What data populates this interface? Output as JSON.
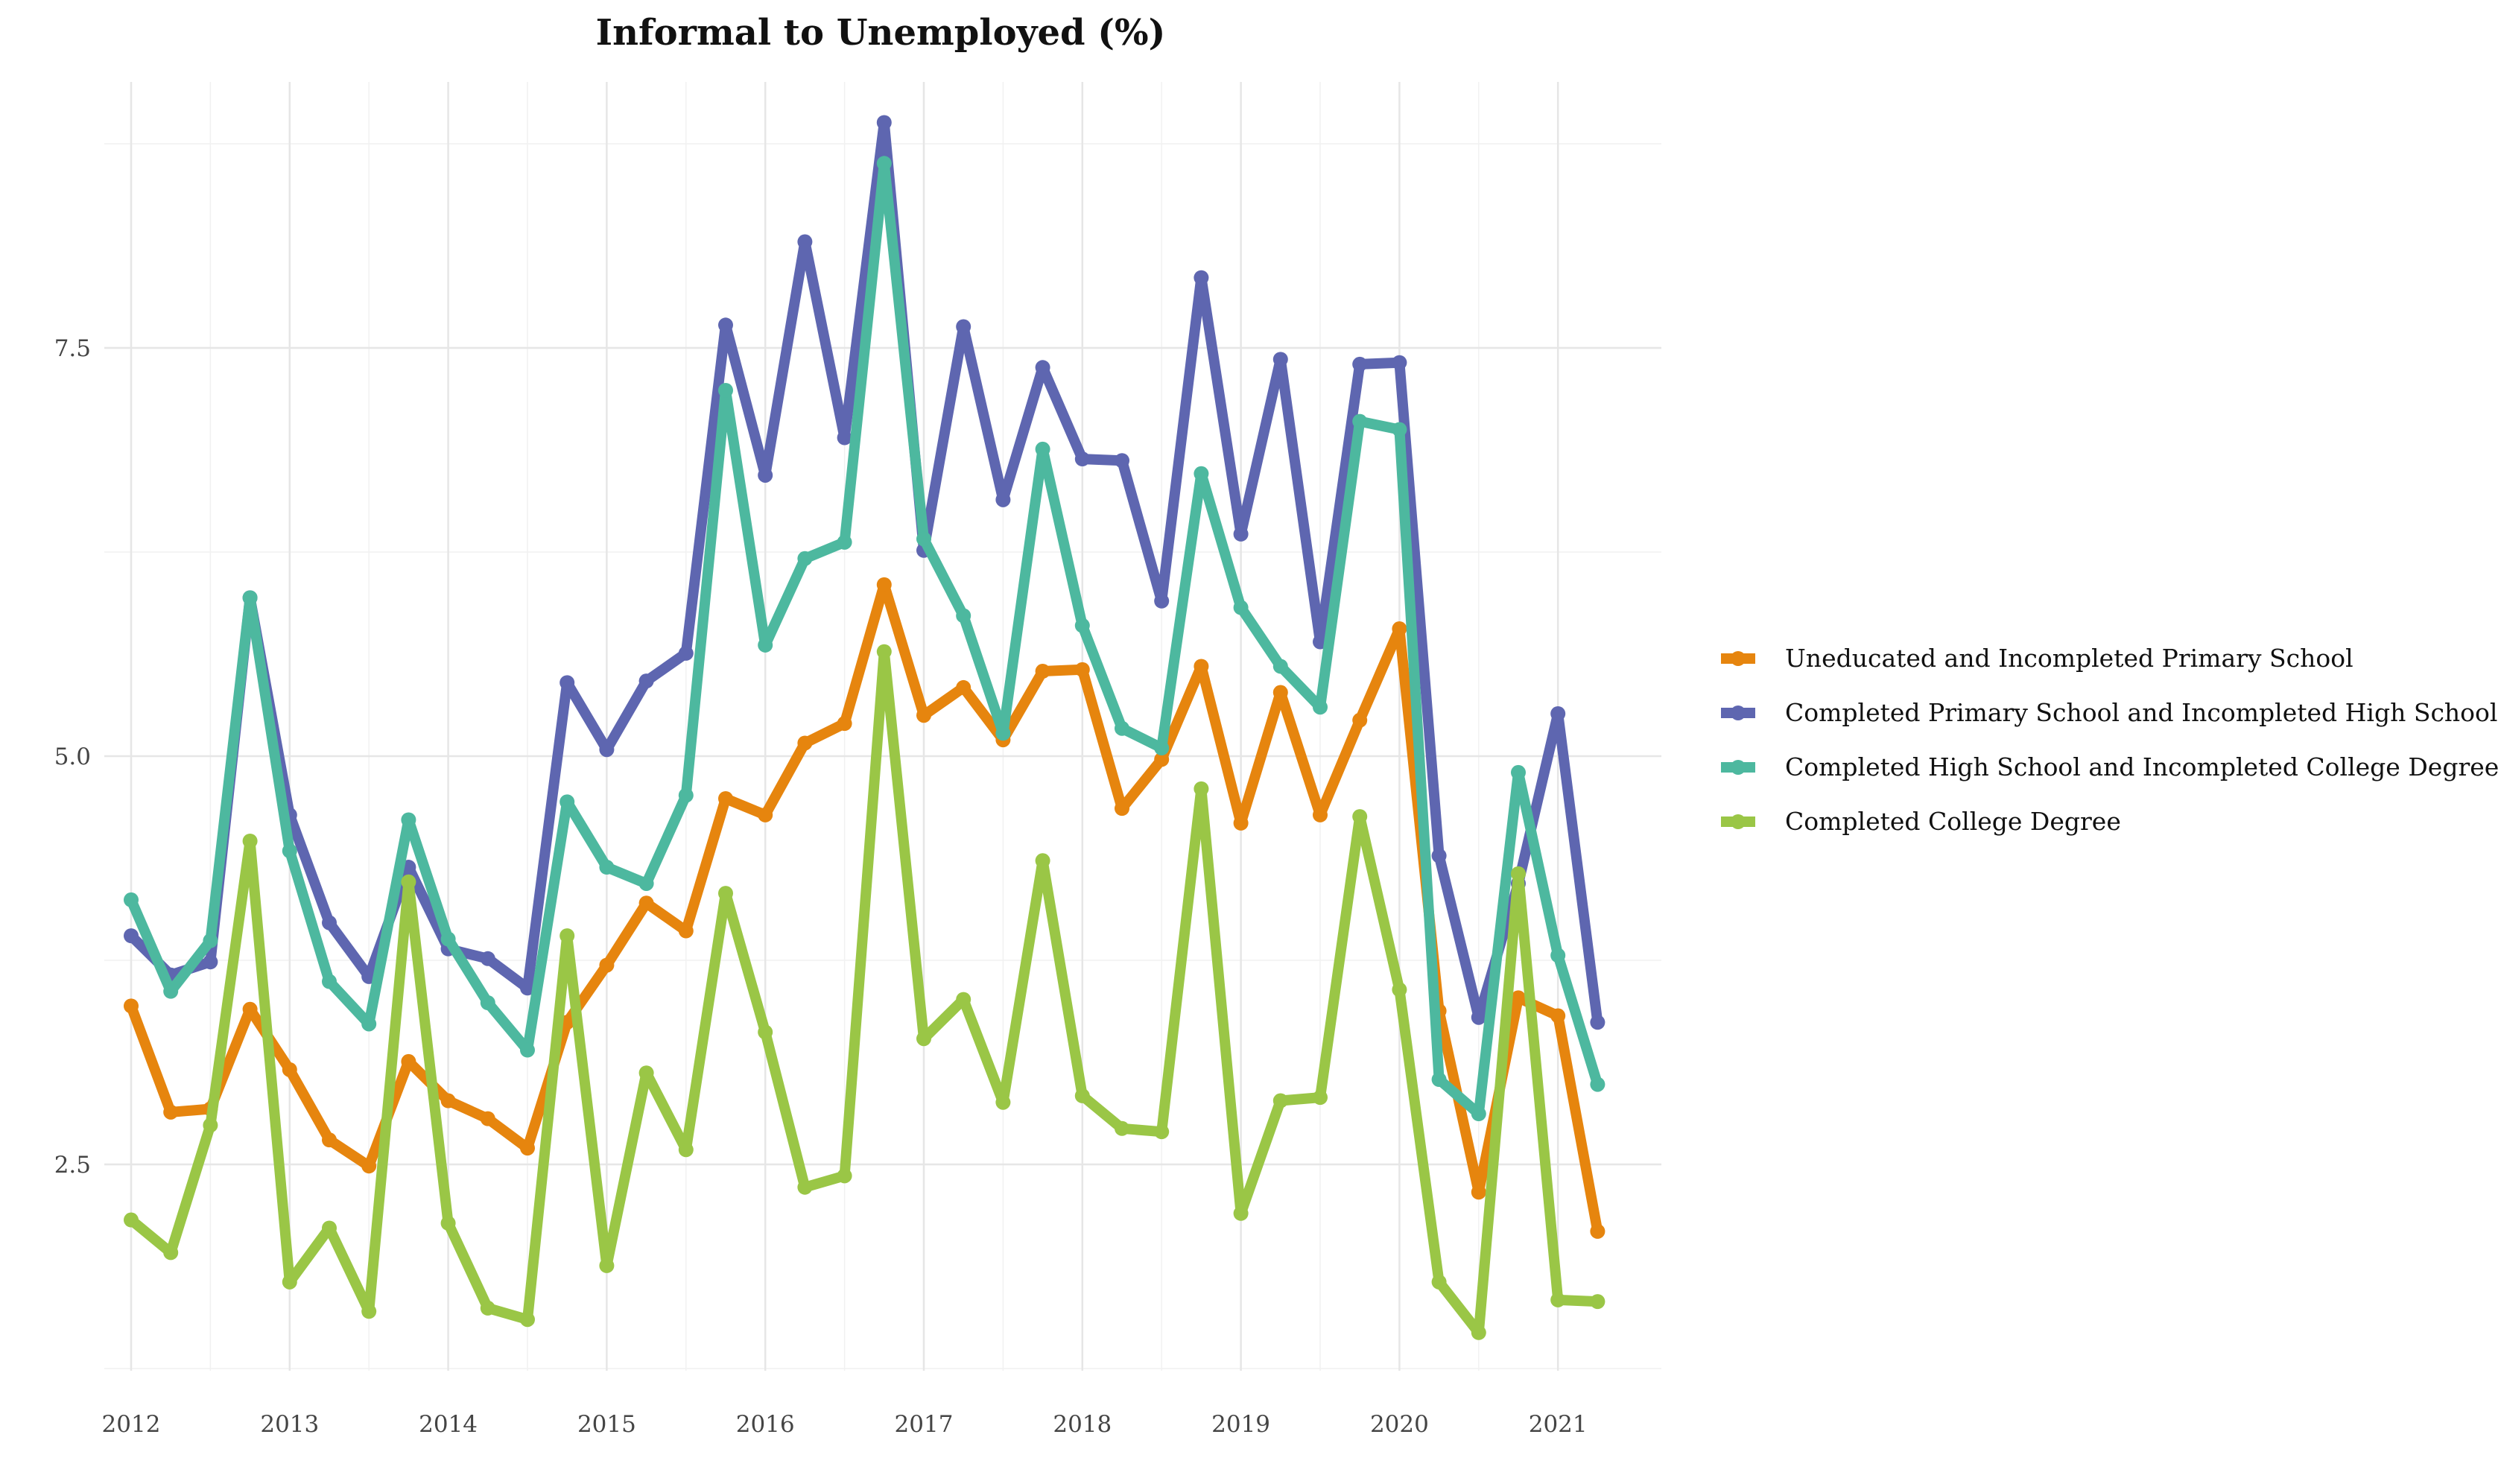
{
  "chart_data": {
    "type": "line",
    "title": "Informal to Unemployed (%)",
    "xlabel": "",
    "ylabel": "",
    "x_ticks": [
      "2012",
      "2013",
      "2014",
      "2015",
      "2016",
      "2017",
      "2018",
      "2019",
      "2020",
      "2021"
    ],
    "y_ticks": [
      "2.5",
      "5.0",
      "7.5"
    ],
    "xlim": [
      2011.85,
      2021.6
    ],
    "ylim": [
      1.2,
      9.2
    ],
    "grid": true,
    "legend_position": "right",
    "x": [
      "2012 Q1",
      "2012 Q2",
      "2012 Q3",
      "2012 Q4",
      "2013 Q1",
      "2013 Q2",
      "2013 Q3",
      "2013 Q4",
      "2014 Q1",
      "2014 Q2",
      "2014 Q3",
      "2014 Q4",
      "2015 Q1",
      "2015 Q2",
      "2015 Q3",
      "2015 Q4",
      "2016 Q1",
      "2016 Q2",
      "2016 Q3",
      "2016 Q4",
      "2017 Q1",
      "2017 Q2",
      "2017 Q3",
      "2017 Q4",
      "2018 Q1",
      "2018 Q2",
      "2018 Q3",
      "2018 Q4",
      "2019 Q1",
      "2019 Q2",
      "2019 Q3",
      "2019 Q4",
      "2020 Q1",
      "2020 Q2",
      "2020 Q3",
      "2020 Q4",
      "2021 Q1",
      "2021 Q2"
    ],
    "series": [
      {
        "name": "Uneducated and Incompleted Primary School",
        "color": "#E6850E",
        "values": [
          3.47,
          2.82,
          2.84,
          3.45,
          3.08,
          2.65,
          2.49,
          3.13,
          2.89,
          2.78,
          2.6,
          3.37,
          3.72,
          4.1,
          3.93,
          4.74,
          4.64,
          5.08,
          5.2,
          6.05,
          5.25,
          5.42,
          5.1,
          5.52,
          5.53,
          4.68,
          4.98,
          5.55,
          4.59,
          5.39,
          4.64,
          5.22,
          5.78,
          3.44,
          2.33,
          3.52,
          3.41,
          2.09
        ]
      },
      {
        "name": "Completed Primary School and Incompleted High School",
        "color": "#5E66B0",
        "values": [
          3.9,
          3.66,
          3.74,
          5.97,
          4.64,
          3.98,
          3.65,
          4.32,
          3.82,
          3.76,
          3.58,
          5.45,
          5.04,
          5.46,
          5.63,
          7.64,
          6.72,
          8.15,
          6.95,
          8.88,
          6.26,
          7.63,
          6.57,
          7.38,
          6.82,
          6.81,
          5.95,
          7.93,
          6.36,
          7.43,
          5.7,
          7.4,
          7.41,
          4.39,
          3.4,
          4.22,
          5.26,
          3.37
        ]
      },
      {
        "name": "Completed High School and Incompleted College Degree",
        "color": "#4DB89F",
        "values": [
          4.12,
          3.56,
          3.87,
          5.97,
          4.42,
          3.62,
          3.36,
          4.61,
          3.88,
          3.49,
          3.2,
          4.72,
          4.32,
          4.22,
          4.76,
          7.24,
          5.68,
          6.21,
          6.31,
          8.63,
          6.33,
          5.86,
          5.14,
          6.88,
          5.8,
          5.17,
          5.05,
          6.73,
          5.91,
          5.55,
          5.3,
          7.05,
          7.0,
          3.02,
          2.81,
          4.9,
          3.78,
          2.99
        ]
      },
      {
        "name": "Completed College Degree",
        "color": "#9AC646",
        "values": [
          2.16,
          1.96,
          2.74,
          4.48,
          1.78,
          2.11,
          1.6,
          4.23,
          2.14,
          1.62,
          1.55,
          3.9,
          1.88,
          3.06,
          2.59,
          4.16,
          3.31,
          2.36,
          2.43,
          5.64,
          3.27,
          3.51,
          2.88,
          4.36,
          2.92,
          2.72,
          2.7,
          4.8,
          2.2,
          2.89,
          2.91,
          4.63,
          3.57,
          1.78,
          1.47,
          4.28,
          1.67,
          1.66
        ]
      }
    ]
  }
}
